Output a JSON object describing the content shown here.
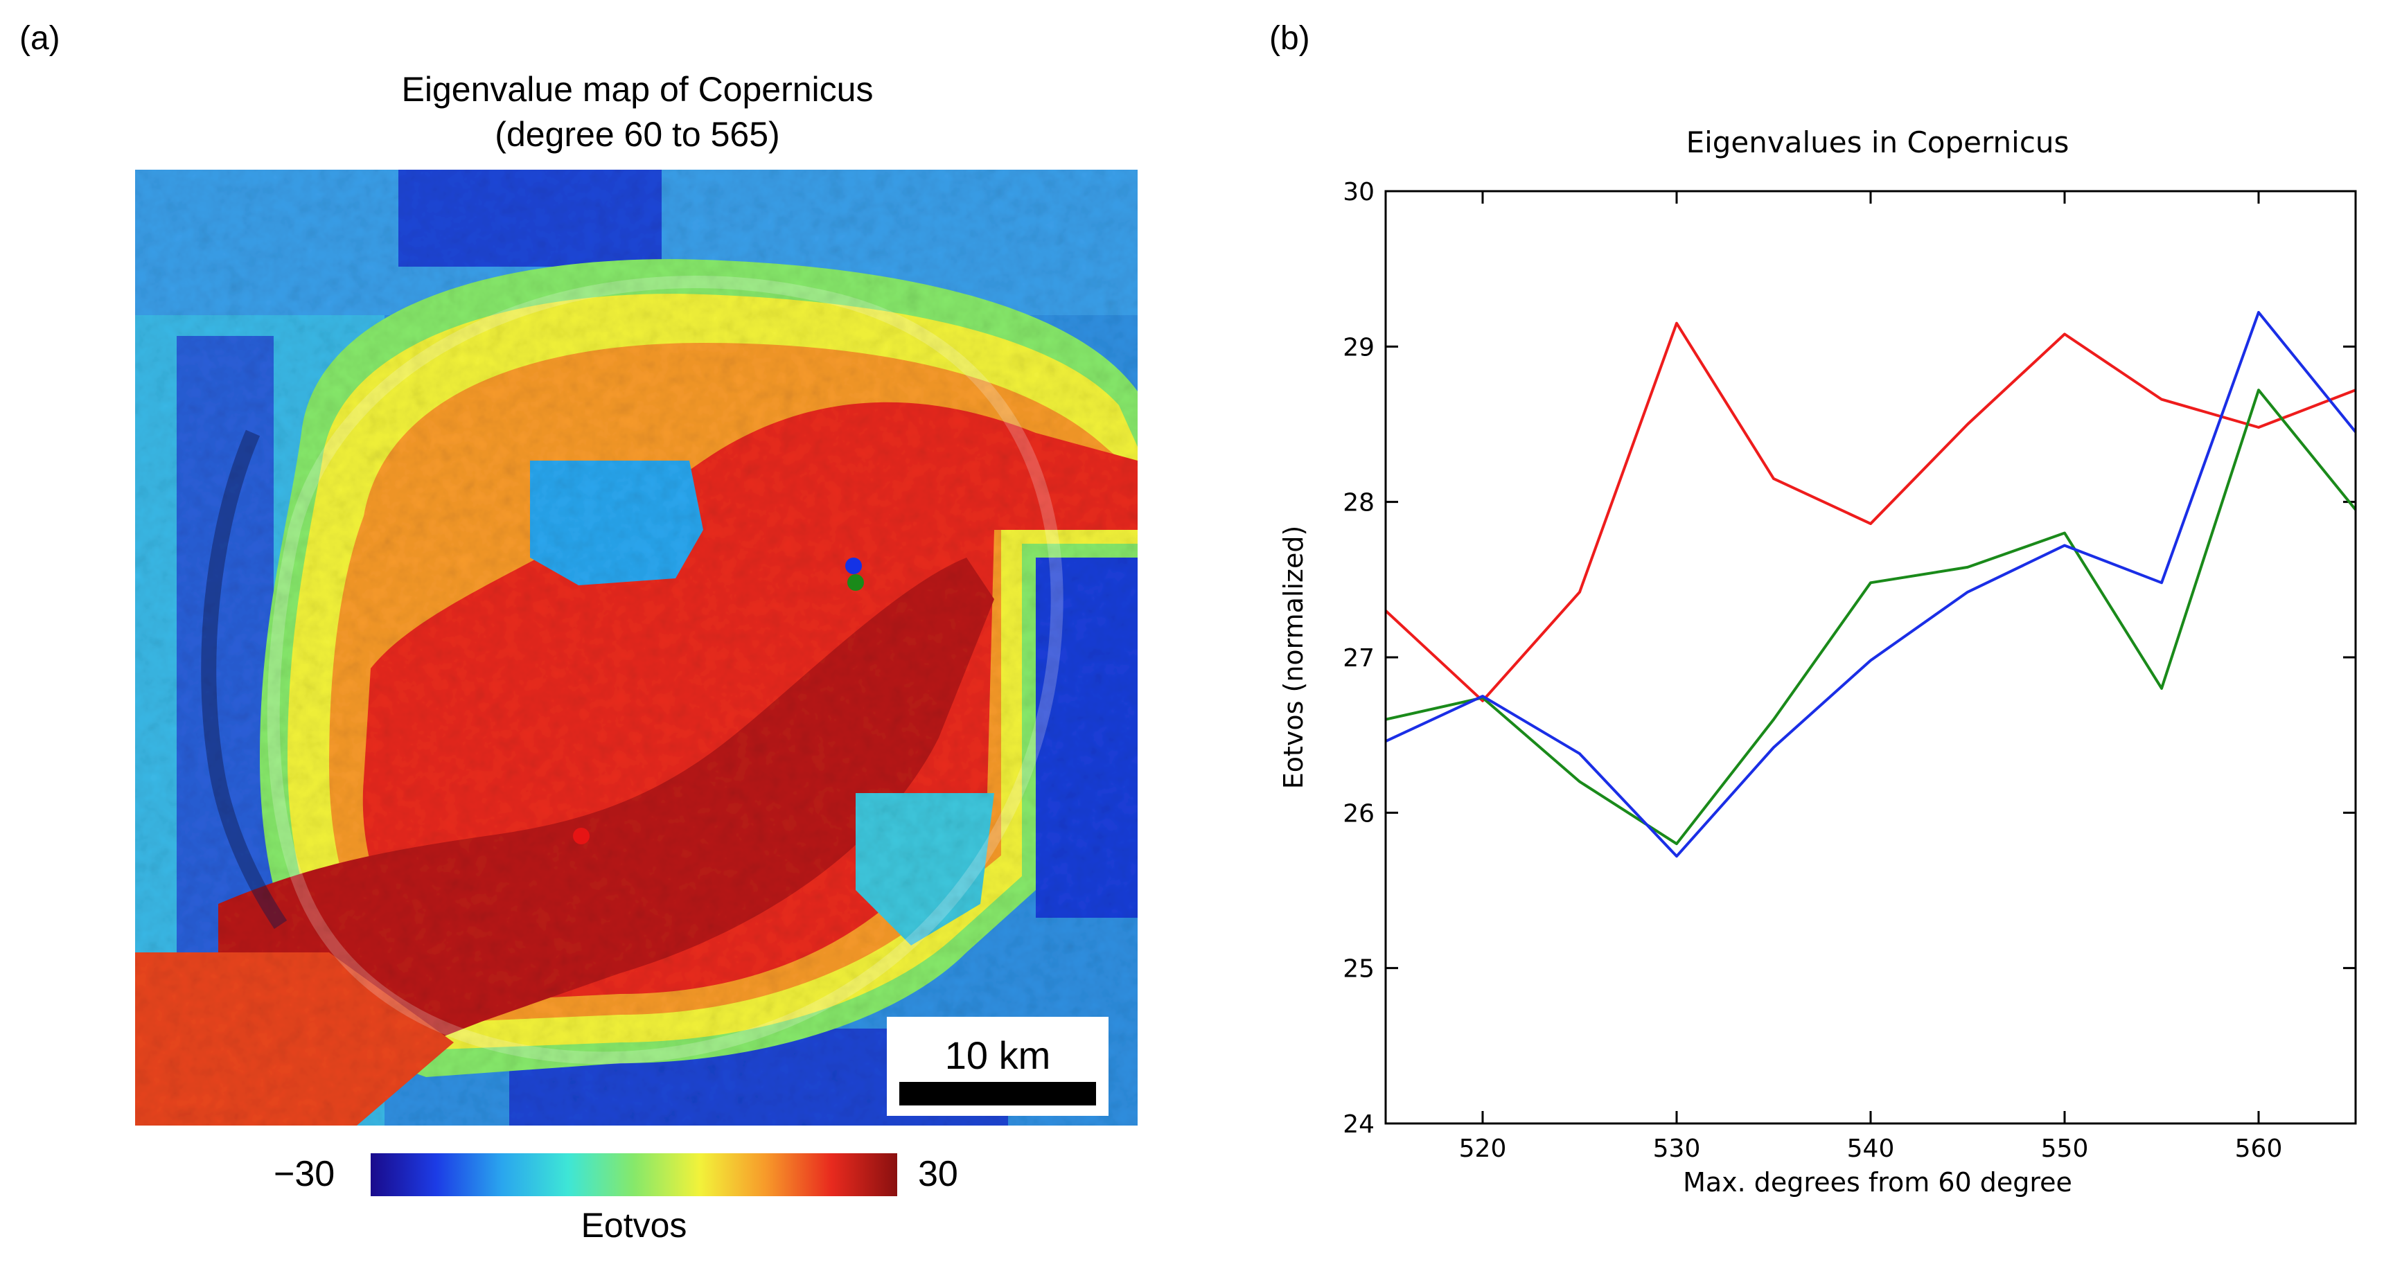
{
  "panel_a": {
    "label": "(a)",
    "title_line1": "Eigenvalue map of Copernicus",
    "title_line2": "(degree 60 to 565)",
    "scale_bar_label": "10 km",
    "colorbar": {
      "min_label": "−30",
      "max_label": "30",
      "title": "Eotvos",
      "colors": [
        "#1a0b8c",
        "#1c3ce6",
        "#2aa6ee",
        "#3ee6d6",
        "#86e86a",
        "#f2f23a",
        "#f79a2a",
        "#e82a1e",
        "#8a1010"
      ]
    },
    "markers": [
      {
        "name": "blue-marker",
        "color": "#1432e6"
      },
      {
        "name": "green-marker",
        "color": "#1a8a1a"
      },
      {
        "name": "red-marker",
        "color": "#e61414"
      }
    ]
  },
  "panel_b": {
    "label": "(b)"
  },
  "chart_data": {
    "type": "line",
    "title": "Eigenvalues in Copernicus",
    "xlabel": "Max. degrees from 60 degree",
    "ylabel": "Eotvos (normalized)",
    "xlim": [
      515,
      565
    ],
    "ylim": [
      24,
      30
    ],
    "xticks": [
      520,
      530,
      540,
      550,
      560
    ],
    "yticks": [
      24,
      25,
      26,
      27,
      28,
      29,
      30
    ],
    "x": [
      515,
      520,
      525,
      530,
      535,
      540,
      545,
      550,
      555,
      560,
      565
    ],
    "series": [
      {
        "name": "red",
        "color": "#ee1c1c",
        "values": [
          27.3,
          26.72,
          27.42,
          29.15,
          28.15,
          27.86,
          28.5,
          29.08,
          28.66,
          28.48,
          28.72
        ]
      },
      {
        "name": "green",
        "color": "#1a8a1a",
        "values": [
          26.6,
          26.74,
          26.2,
          25.8,
          26.6,
          27.48,
          27.58,
          27.8,
          26.8,
          28.72,
          27.95
        ]
      },
      {
        "name": "blue",
        "color": "#1a2ee6",
        "values": [
          26.46,
          26.75,
          26.38,
          25.72,
          26.42,
          26.98,
          27.42,
          27.72,
          27.48,
          29.22,
          28.45
        ]
      }
    ]
  }
}
